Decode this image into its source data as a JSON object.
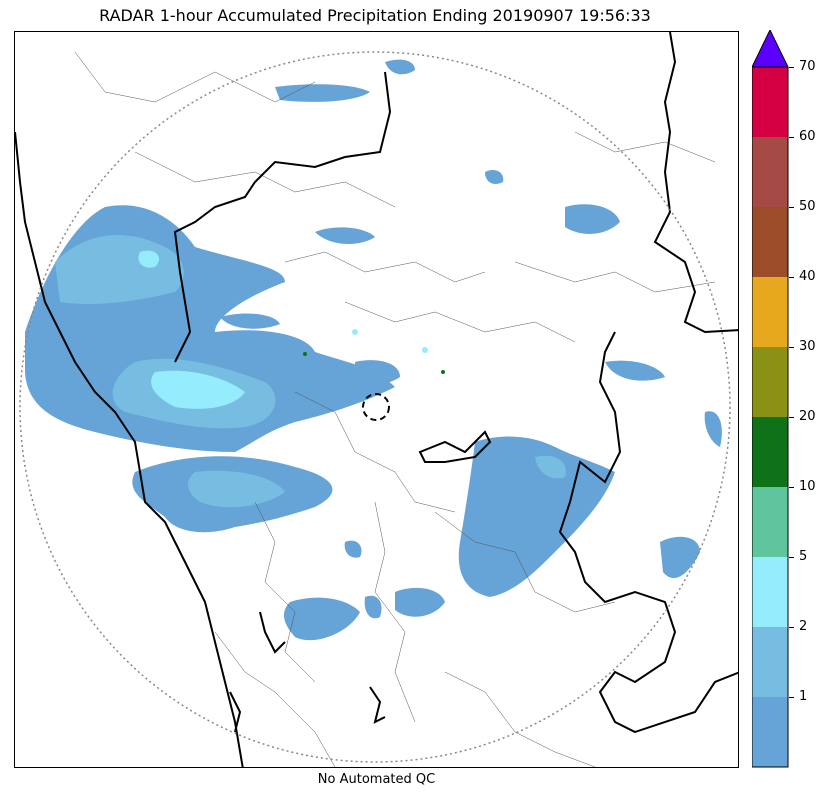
{
  "title": "RADAR 1-hour Accumulated Precipitation Ending 20190907 19:56:33",
  "footer": "No Automated QC",
  "colorbar": {
    "extend_color": "#5b00ff",
    "levels": [
      {
        "label": "",
        "color": "#66a3d6"
      },
      {
        "label": "1",
        "color": "#77bde2"
      },
      {
        "label": "2",
        "color": "#94ecfd"
      },
      {
        "label": "5",
        "color": "#5ec59d"
      },
      {
        "label": "10",
        "color": "#0f7219"
      },
      {
        "label": "20",
        "color": "#8a9114"
      },
      {
        "label": "30",
        "color": "#e6a81c"
      },
      {
        "label": "40",
        "color": "#9a4d28"
      },
      {
        "label": "50",
        "color": "#a64a46"
      },
      {
        "label": "60",
        "color": "#d50042"
      },
      {
        "label": "70",
        "color": ""
      }
    ]
  },
  "precip_colors": {
    "light": "#66a3d6",
    "moderate": "#77bde2",
    "heavy": "#94ecfd",
    "very_heavy": "#0f7219"
  }
}
